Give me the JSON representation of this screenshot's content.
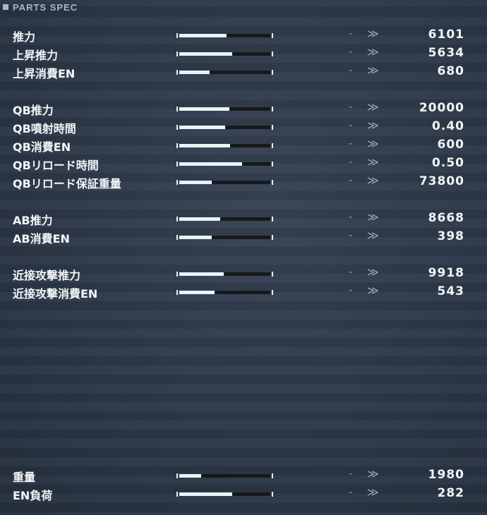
{
  "header": {
    "title": "PARTS SPEC"
  },
  "rows": [
    {
      "label": "推力",
      "fill": 0.52,
      "delta": "-",
      "value": "6101"
    },
    {
      "label": "上昇推力",
      "fill": 0.58,
      "delta": "-",
      "value": "5634"
    },
    {
      "label": "上昇消費EN",
      "fill": 0.33,
      "delta": "-",
      "value": "680"
    },
    {
      "label": "QB推力",
      "fill": 0.55,
      "delta": "-",
      "value": "20000"
    },
    {
      "label": "QB噴射時間",
      "fill": 0.5,
      "delta": "-",
      "value": "0.40"
    },
    {
      "label": "QB消費EN",
      "fill": 0.56,
      "delta": "-",
      "value": "600"
    },
    {
      "label": "QBリロード時間",
      "fill": 0.69,
      "delta": "-",
      "value": "0.50"
    },
    {
      "label": "QBリロード保証重量",
      "fill": 0.36,
      "delta": "-",
      "value": "73800"
    },
    {
      "label": "AB推力",
      "fill": 0.45,
      "delta": "-",
      "value": "8668"
    },
    {
      "label": "AB消費EN",
      "fill": 0.36,
      "delta": "-",
      "value": "398"
    },
    {
      "label": "近接攻撃推力",
      "fill": 0.49,
      "delta": "-",
      "value": "9918"
    },
    {
      "label": "近接攻撃消費EN",
      "fill": 0.39,
      "delta": "-",
      "value": "543"
    },
    {
      "label": "重量",
      "fill": 0.24,
      "delta": "-",
      "value": "1980"
    },
    {
      "label": "EN負荷",
      "fill": 0.58,
      "delta": "-",
      "value": "282"
    }
  ],
  "icons": {
    "header": "square-bullet-icon",
    "compare": "double-chevron-right-icon"
  }
}
